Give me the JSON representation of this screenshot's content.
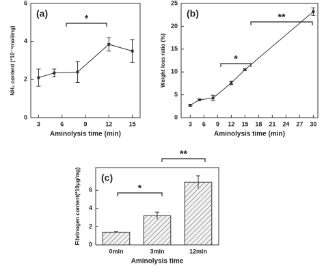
{
  "chart_data": [
    {
      "type": "line",
      "panel_label": "(a)",
      "xlabel": "Aminolysis time (min)",
      "ylabel": "NH₂ content (*10⁻⁵mol/mg)",
      "x": [
        3,
        5,
        8,
        12,
        15
      ],
      "values": [
        2.1,
        2.35,
        2.4,
        3.85,
        3.5
      ],
      "errors": [
        0.45,
        0.2,
        0.55,
        0.35,
        0.6
      ],
      "color": "#333333",
      "xlim": [
        2,
        16
      ],
      "xticks": [
        3,
        6,
        9,
        12,
        15
      ],
      "ylim": [
        0,
        6
      ],
      "yticks": [
        0,
        2,
        4,
        6
      ],
      "annotations": [
        {
          "text": "*"
        }
      ]
    },
    {
      "type": "line",
      "panel_label": "(b)",
      "xlabel": "Aminolysis time (min)",
      "ylabel": "Weight loss ratio (%)",
      "x": [
        3,
        5,
        8,
        12,
        15,
        30
      ],
      "values": [
        2.7,
        3.9,
        4.3,
        7.6,
        10.5,
        23.2
      ],
      "errors": [
        0.2,
        0.2,
        0.6,
        0.4,
        0.2,
        0.8
      ],
      "color": "#333333",
      "xlim": [
        1,
        31
      ],
      "xticks": [
        3,
        6,
        9,
        12,
        15,
        18,
        21,
        24,
        27,
        30
      ],
      "ylim": [
        0,
        25
      ],
      "yticks": [
        0,
        5,
        10,
        15,
        20,
        25
      ],
      "annotations": [
        {
          "text": "*"
        },
        {
          "text": "**"
        }
      ]
    },
    {
      "type": "bar",
      "panel_label": "(c)",
      "xlabel": "Aminolysis time",
      "ylabel": "Fibrinogen content(*10μg/mg)",
      "categories": [
        "0min",
        "3min",
        "12min"
      ],
      "values": [
        1.4,
        3.2,
        6.9
      ],
      "errors": [
        0.05,
        0.4,
        0.7
      ],
      "color": "#333333",
      "ylim": [
        0,
        8.5
      ],
      "yticks": [
        0,
        2,
        4,
        6
      ],
      "annotations": [
        {
          "text": "*"
        },
        {
          "text": "**"
        }
      ]
    }
  ]
}
